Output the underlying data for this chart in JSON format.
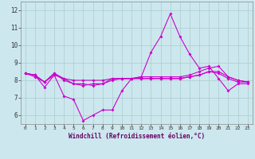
{
  "title": "",
  "xlabel": "Windchill (Refroidissement éolien,°C)",
  "ylabel": "",
  "background_color": "#cce8ee",
  "grid_color": "#aacccc",
  "line_color": "#cc00cc",
  "ylim": [
    5.5,
    12.5
  ],
  "xlim": [
    -0.5,
    23.5
  ],
  "yticks": [
    6,
    7,
    8,
    9,
    10,
    11,
    12
  ],
  "xticks": [
    0,
    1,
    2,
    3,
    4,
    5,
    6,
    7,
    8,
    9,
    10,
    11,
    12,
    13,
    14,
    15,
    16,
    17,
    18,
    19,
    20,
    21,
    22,
    23
  ],
  "series": [
    [
      8.4,
      8.3,
      7.6,
      8.3,
      7.1,
      6.9,
      5.7,
      6.0,
      6.3,
      6.3,
      7.4,
      8.1,
      8.2,
      9.6,
      10.5,
      11.8,
      10.5,
      9.5,
      8.7,
      8.8,
      8.1,
      7.4,
      7.8,
      7.8
    ],
    [
      8.4,
      8.3,
      7.9,
      8.3,
      8.1,
      8.0,
      8.0,
      8.0,
      8.0,
      8.1,
      8.1,
      8.1,
      8.1,
      8.1,
      8.1,
      8.1,
      8.1,
      8.2,
      8.3,
      8.5,
      8.5,
      8.2,
      8.0,
      7.9
    ],
    [
      8.4,
      8.2,
      7.9,
      8.4,
      8.0,
      7.8,
      7.8,
      7.7,
      7.8,
      8.1,
      8.1,
      8.1,
      8.2,
      8.2,
      8.2,
      8.2,
      8.2,
      8.3,
      8.5,
      8.7,
      8.8,
      8.2,
      8.0,
      7.9
    ],
    [
      8.4,
      8.3,
      7.9,
      8.4,
      8.1,
      7.8,
      7.7,
      7.8,
      7.8,
      8.0,
      8.1,
      8.1,
      8.1,
      8.1,
      8.1,
      8.1,
      8.1,
      8.2,
      8.3,
      8.5,
      8.4,
      8.1,
      7.9,
      7.9
    ]
  ]
}
